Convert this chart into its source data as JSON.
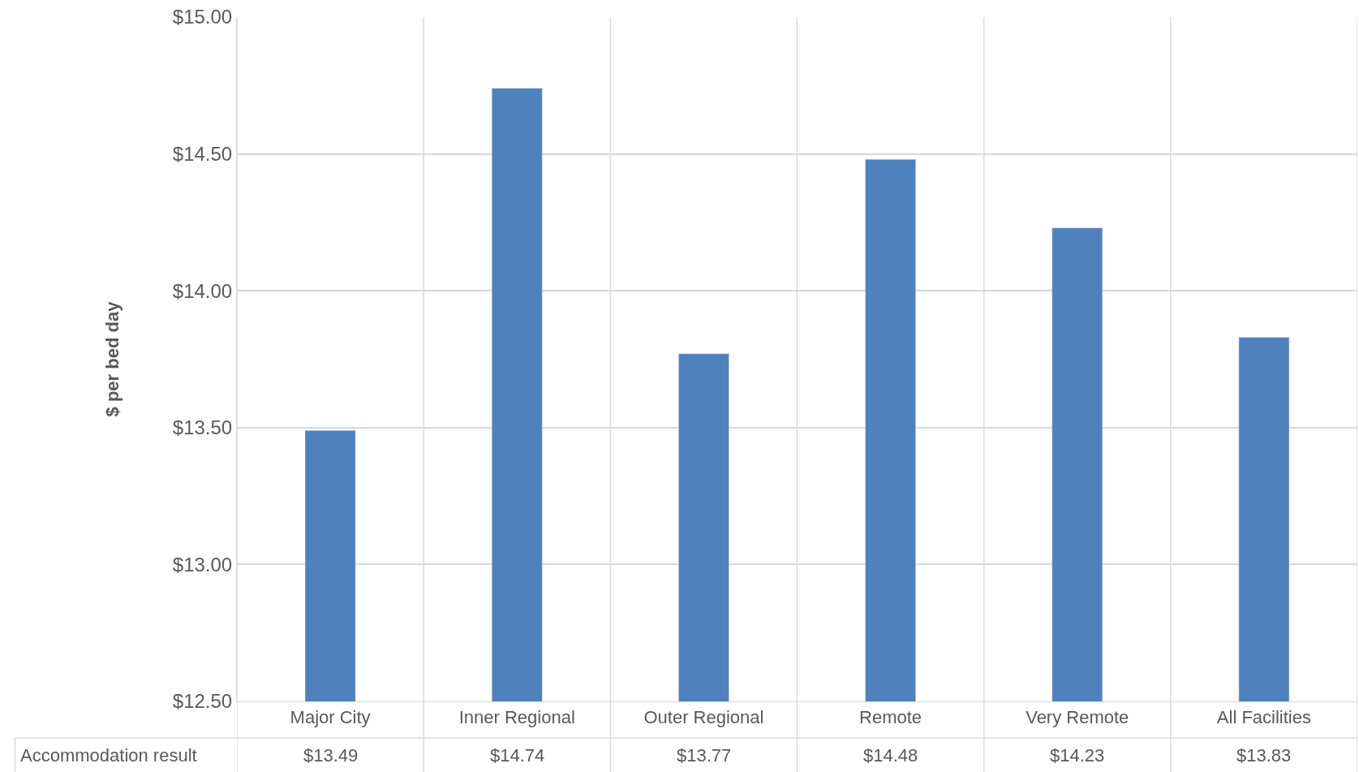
{
  "chart_data": {
    "type": "bar",
    "ylabel": "$ per bed day",
    "categories": [
      "Major City",
      "Inner Regional",
      "Outer Regional",
      "Remote",
      "Very Remote",
      "All Facilities"
    ],
    "series": [
      {
        "name": "Accommodation result",
        "color": "#4f81bd",
        "values": [
          13.49,
          14.74,
          13.77,
          14.48,
          14.23,
          13.83
        ],
        "value_labels": [
          "$13.49",
          "$14.74",
          "$13.77",
          "$14.48",
          "$14.23",
          "$13.83"
        ]
      }
    ],
    "ylim": [
      12.5,
      15
    ],
    "yticks": [
      {
        "value": 12.5,
        "label": "$12.50"
      },
      {
        "value": 13,
        "label": "$13.00"
      },
      {
        "value": 13.5,
        "label": "$13.50"
      },
      {
        "value": 14,
        "label": "$14.00"
      },
      {
        "value": 14.5,
        "label": "$14.50"
      },
      {
        "value": 15,
        "label": "$15.00"
      }
    ],
    "grid": true
  }
}
